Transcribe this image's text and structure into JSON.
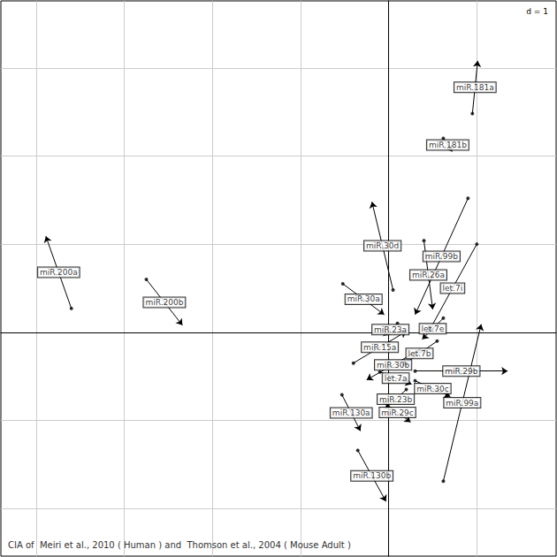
{
  "chart_data": {
    "type": "arrow_scatter",
    "title": "CIA of  Meiri et al., 2010 ( Human ) and  Thomson et al., 2004 ( Mouse Adult )",
    "annotations": [
      "d = 1"
    ],
    "xlim": [
      -4.4,
      1.9
    ],
    "ylim": [
      -2.54,
      3.76
    ],
    "xticks": [
      -4,
      -3,
      -2,
      -1,
      0,
      1
    ],
    "yticks": [
      -2,
      -1,
      0,
      1,
      2,
      3
    ],
    "grid": true,
    "tick_labels": false,
    "color": "#000000",
    "marker": "circle",
    "points": [
      {
        "label": "miR.200a",
        "x": -3.6,
        "y": 0.27,
        "xend": -3.89,
        "yend": 1.09
      },
      {
        "label": "miR.200b",
        "x": -2.75,
        "y": 0.6,
        "xend": -2.34,
        "yend": 0.08
      },
      {
        "label": "miR.181a",
        "x": 0.95,
        "y": 2.48,
        "xend": 1.01,
        "yend": 3.08
      },
      {
        "label": "miR.181b",
        "x": 0.62,
        "y": 2.2,
        "xend": 0.72,
        "yend": 2.05
      },
      {
        "label": "miR.30d",
        "x": 0.05,
        "y": 0.48,
        "xend": -0.19,
        "yend": 1.48
      },
      {
        "label": "miR.99b",
        "x": 0.9,
        "y": 1.52,
        "xend": 0.3,
        "yend": 0.2
      },
      {
        "label": "miR.26a",
        "x": 0.4,
        "y": 1.04,
        "xend": 0.5,
        "yend": 0.26
      },
      {
        "label": "let.7i",
        "x": 1.0,
        "y": 1.0,
        "xend": 0.45,
        "yend": 0.0
      },
      {
        "label": "let.7e",
        "x": 0.62,
        "y": 0.16,
        "xend": 0.38,
        "yend": -0.08
      },
      {
        "label": "miR.30a",
        "x": -0.52,
        "y": 0.55,
        "xend": -0.05,
        "yend": 0.2
      },
      {
        "label": "miR.23a",
        "x": 0.1,
        "y": 0.1,
        "xend": -0.06,
        "yend": -0.04
      },
      {
        "label": "miR.15a",
        "x": -0.4,
        "y": -0.35,
        "xend": 0.2,
        "yend": 0.01
      },
      {
        "label": "let.7b",
        "x": 0.55,
        "y": -0.1,
        "xend": 0.15,
        "yend": -0.38
      },
      {
        "label": "miR.30b",
        "x": 0.35,
        "y": -0.2,
        "xend": -0.25,
        "yend": -0.54
      },
      {
        "label": "let.7a",
        "x": -0.1,
        "y": -0.45,
        "xend": 0.26,
        "yend": -0.59
      },
      {
        "label": "miR.30c",
        "x": 0.3,
        "y": -0.55,
        "xend": 0.7,
        "yend": -0.73
      },
      {
        "label": "miR.23b",
        "x": 0.2,
        "y": -0.65,
        "xend": -0.04,
        "yend": -0.87
      },
      {
        "label": "miR.29c",
        "x": -0.05,
        "y": -0.8,
        "xend": 0.25,
        "yend": -1.02
      },
      {
        "label": "miR.29b",
        "x": 0.3,
        "y": -0.44,
        "xend": 1.35,
        "yend": -0.44
      },
      {
        "label": "miR.99a",
        "x": 0.62,
        "y": -1.69,
        "xend": 1.05,
        "yend": 0.09
      },
      {
        "label": "miR.130a",
        "x": -0.53,
        "y": -0.71,
        "xend": -0.32,
        "yend": -1.12
      },
      {
        "label": "miR.130b",
        "x": -0.35,
        "y": -1.34,
        "xend": -0.03,
        "yend": -1.92
      }
    ]
  }
}
